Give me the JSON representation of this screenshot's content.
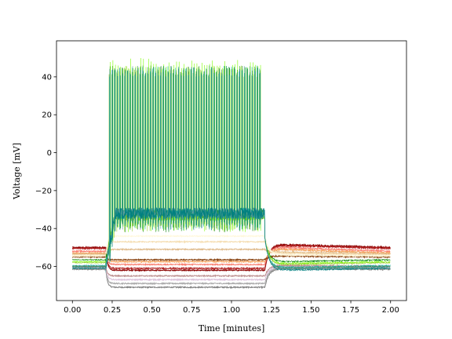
{
  "chart_data": {
    "type": "line",
    "title": "",
    "xlabel": "Time [minutes]",
    "ylabel": "Voltage [mV]",
    "xlim": [
      -0.1,
      2.1
    ],
    "ylim": [
      -78,
      59
    ],
    "xticks": [
      0.0,
      0.25,
      0.5,
      0.75,
      1.0,
      1.25,
      1.5,
      1.75,
      2.0
    ],
    "xtick_labels": [
      "0.00",
      "0.25",
      "0.50",
      "0.75",
      "1.00",
      "1.25",
      "1.50",
      "1.75",
      "2.00"
    ],
    "yticks": [
      -60,
      -40,
      -20,
      0,
      20,
      40
    ],
    "ytick_labels": [
      "−60",
      "−40",
      "−20",
      "0",
      "20",
      "40"
    ],
    "grid": false,
    "legend": "none",
    "stimulus": {
      "start": 0.21,
      "end": 1.21
    },
    "series": [
      {
        "color": "#808080",
        "baseline": -61.5,
        "stim_level": -71.0,
        "recovery": -61.0
      },
      {
        "color": "#a9a9a9",
        "baseline": -61.0,
        "stim_level": -69.0,
        "recovery": -60.5
      },
      {
        "color": "#d8bfd8",
        "baseline": -60.5,
        "stim_level": -67.0,
        "recovery": -60.0
      },
      {
        "color": "#bc8f8f",
        "baseline": -60.0,
        "stim_level": -65.0,
        "recovery": -59.5
      },
      {
        "color": "#8b0000",
        "baseline": -50.0,
        "stim_level": -62.0,
        "recovery": -48.5
      },
      {
        "color": "#b22222",
        "baseline": -50.5,
        "stim_level": -61.0,
        "recovery": -49.0
      },
      {
        "color": "#fa8072",
        "baseline": -52.0,
        "stim_level": -59.0,
        "recovery": -50.0
      },
      {
        "color": "#f4a460",
        "baseline": -53.0,
        "stim_level": -57.5,
        "recovery": -51.0
      },
      {
        "color": "#8b4513",
        "baseline": -55.0,
        "stim_level": -56.5,
        "recovery": -54.5
      },
      {
        "color": "#deb887",
        "baseline": -53.5,
        "stim_level": -51.0,
        "recovery": -52.5
      },
      {
        "color": "#f5deb3",
        "baseline": -54.0,
        "stim_level": -47.0,
        "recovery": -53.0
      },
      {
        "color": "#fff8dc",
        "baseline": -54.5,
        "stim_level": -44.0,
        "recovery": -54.0
      },
      {
        "color": "#008000",
        "baseline": -56.5,
        "stim_level": -33.0,
        "recovery": -57.5,
        "spiking": true
      },
      {
        "color": "#7cfc00",
        "baseline": -57.5,
        "stim_level": -33.0,
        "recovery": -58.5,
        "spiking": true
      },
      {
        "color": "#9acd32",
        "baseline": -58.0,
        "stim_level": -33.0,
        "recovery": -59.0,
        "spiking": true
      },
      {
        "color": "#20b2aa",
        "baseline": -59.5,
        "stim_level": -32.0,
        "recovery": -60.5,
        "spiking": true
      },
      {
        "color": "#2e8b57",
        "baseline": -60.0,
        "stim_level": -32.0,
        "recovery": -61.0,
        "spiking": true
      },
      {
        "color": "#5f9ea0",
        "baseline": -60.5,
        "stim_level": -32.0,
        "recovery": -61.5,
        "spiking": true
      },
      {
        "color": "#008080",
        "baseline": -61.0,
        "stim_level": -32.0,
        "recovery": -62.0,
        "spiking": true
      }
    ],
    "spike_peak": 46,
    "spike_count": 60
  }
}
